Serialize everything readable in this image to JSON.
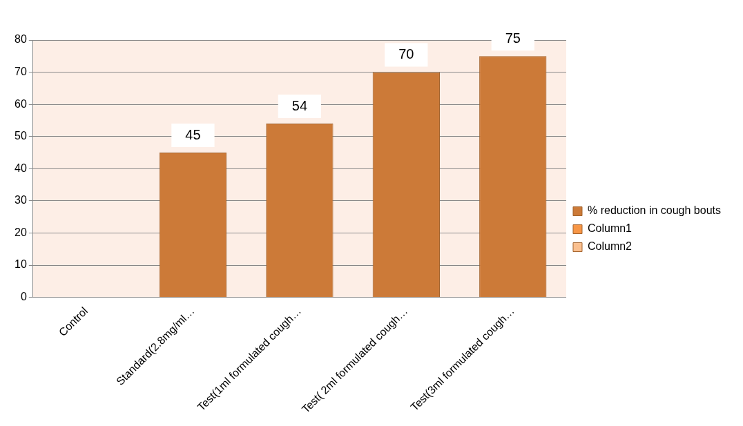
{
  "chart_data": {
    "type": "bar",
    "categories": [
      "Control",
      "Standard(2.8mg/ml…",
      "Test(1ml formulated cough…",
      "Test( 2ml formulated cough…",
      "Test(3ml formulated cough…"
    ],
    "series": [
      {
        "name": "% reduction in cough bouts",
        "color": "#cc7a38",
        "values": [
          null,
          45,
          54,
          70,
          75
        ],
        "value_labels": [
          null,
          "45",
          "54",
          "70",
          "75"
        ]
      },
      {
        "name": "Column1",
        "color": "#f79646",
        "values": [
          null,
          null,
          null,
          null,
          null
        ]
      },
      {
        "name": "Column2",
        "color": "#fac090",
        "values": [
          null,
          null,
          null,
          null,
          null
        ]
      }
    ],
    "ylim": [
      0,
      80
    ],
    "yticks": [
      0,
      10,
      20,
      30,
      40,
      50,
      60,
      70,
      80
    ],
    "grid": "y",
    "legend": "right"
  }
}
